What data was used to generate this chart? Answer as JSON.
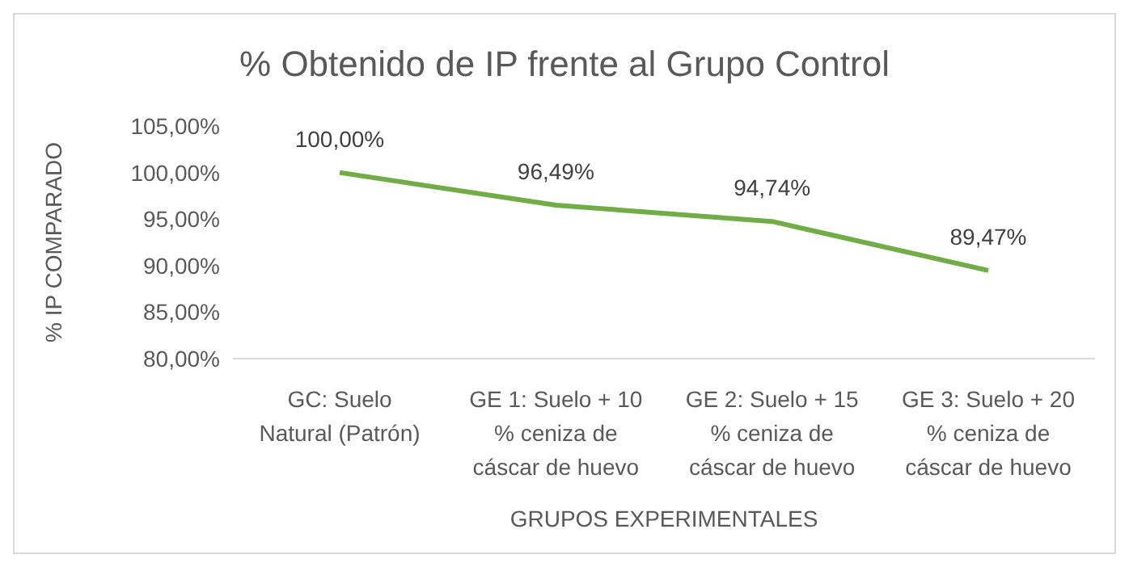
{
  "chart_data": {
    "type": "line",
    "title": "% Obtenido de IP frente al Grupo Control",
    "xlabel": "GRUPOS EXPERIMENTALES",
    "ylabel": "% IP COMPARADO",
    "categories": [
      "GC: Suelo Natural (Patrón)",
      "GE 1: Suelo + 10 % ceniza de cáscar de huevo",
      "GE 2: Suelo + 15 % ceniza de cáscar de huevo",
      "GE 3: Suelo + 20 % ceniza de cáscar de huevo"
    ],
    "series": [
      {
        "color": "#70ad47",
        "values": [
          100,
          96.49,
          94.74,
          89.47
        ],
        "value_labels": [
          "100,00%",
          "96,49%",
          "94,74%",
          "89,47%"
        ]
      }
    ],
    "ylim": [
      80,
      105
    ],
    "yticks": [
      {
        "value": 80,
        "label": "80,00%"
      },
      {
        "value": 85,
        "label": "85,00%"
      },
      {
        "value": 90,
        "label": "90,00%"
      },
      {
        "value": 95,
        "label": "95,00%"
      },
      {
        "value": 100,
        "label": "100,00%"
      },
      {
        "value": 105,
        "label": "105,00%"
      }
    ],
    "marker": "none",
    "line_style": "solid"
  }
}
